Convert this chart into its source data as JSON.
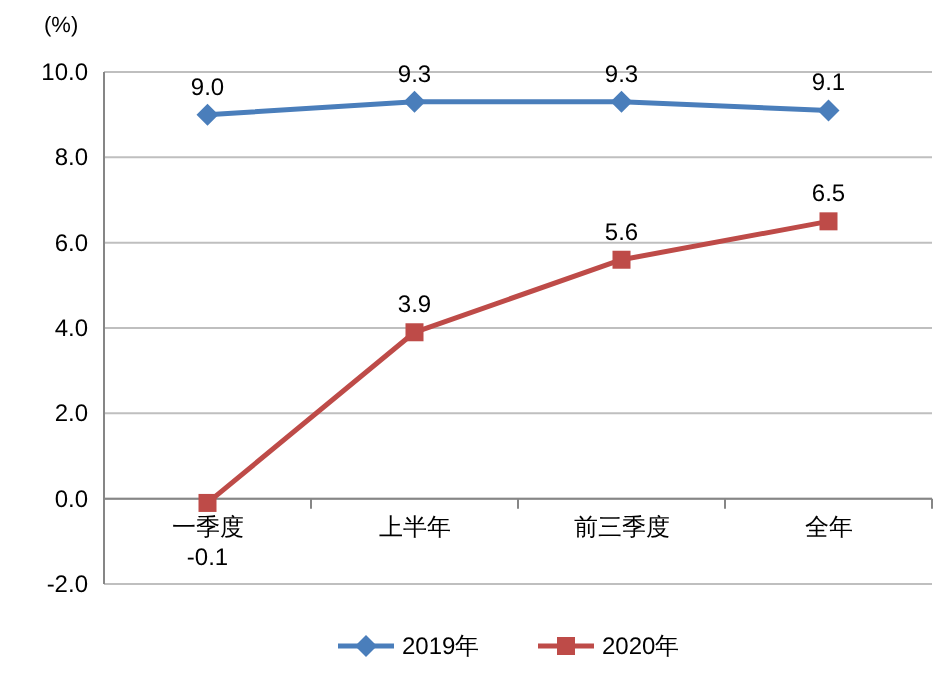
{
  "chart_data": {
    "type": "line",
    "ylabel": "(%)",
    "categories": [
      "一季度",
      "上半年",
      "前三季度",
      "全年"
    ],
    "series": [
      {
        "name": "2019年",
        "color": "#4a7ebb",
        "marker": "diamond",
        "values": [
          9.0,
          9.3,
          9.3,
          9.1
        ],
        "value_labels": [
          "9.0",
          "9.3",
          "9.3",
          "9.1"
        ]
      },
      {
        "name": "2020年",
        "color": "#be4b48",
        "marker": "square",
        "values": [
          -0.1,
          3.9,
          5.6,
          6.5
        ],
        "value_labels": [
          "-0.1",
          "3.9",
          "5.6",
          "6.5"
        ]
      }
    ],
    "ylim": [
      -2,
      10
    ],
    "yticks": [
      {
        "value": -2,
        "label": "-2.0"
      },
      {
        "value": 0,
        "label": "0.0"
      },
      {
        "value": 2,
        "label": "2.0"
      },
      {
        "value": 4,
        "label": "4.0"
      },
      {
        "value": 6,
        "label": "6.0"
      },
      {
        "value": 8,
        "label": "8.0"
      },
      {
        "value": 10,
        "label": "10.0"
      }
    ],
    "grid": "y",
    "legend": "bottom",
    "line_style": "solid"
  }
}
